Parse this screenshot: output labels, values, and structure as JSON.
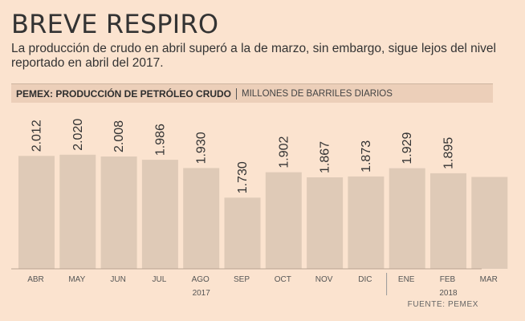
{
  "title": "BREVE RESPIRO",
  "subtitle": "La producción de crudo en abril superó a la de marzo, sin embargo, sigue lejos del nivel reportado en abril del 2017.",
  "colors": {
    "background": "#fbe3cf",
    "bar": "#dfcab7",
    "header": "#eccfb9"
  },
  "chart_data": {
    "type": "bar",
    "title": "PEMEX: PRODUCCIÓN DE PETRÓLEO CRUDO",
    "unit": "MILLONES DE BARRILES DIARIOS",
    "categories": [
      "ABR",
      "MAY",
      "JUN",
      "JUL",
      "AGO",
      "SEP",
      "OCT",
      "NOV",
      "DIC",
      "ENE",
      "FEB",
      "MAR"
    ],
    "values": [
      2.012,
      2.02,
      2.008,
      1.986,
      1.93,
      1.73,
      1.902,
      1.867,
      1.873,
      1.929,
      1.895,
      1.87
    ],
    "value_labels": [
      "2.012",
      "2.020",
      "2.008",
      "1.986",
      "1.930",
      "1.730",
      "1.902",
      "1.867",
      "1.873",
      "1.929",
      "1.895",
      ""
    ],
    "years": [
      {
        "label": "2017",
        "from": 0,
        "to": 8
      },
      {
        "label": "2018",
        "from": 9,
        "to": 11
      }
    ],
    "ylim": [
      1.25,
      2.1
    ],
    "source": "FUENTE: PEMEX"
  }
}
